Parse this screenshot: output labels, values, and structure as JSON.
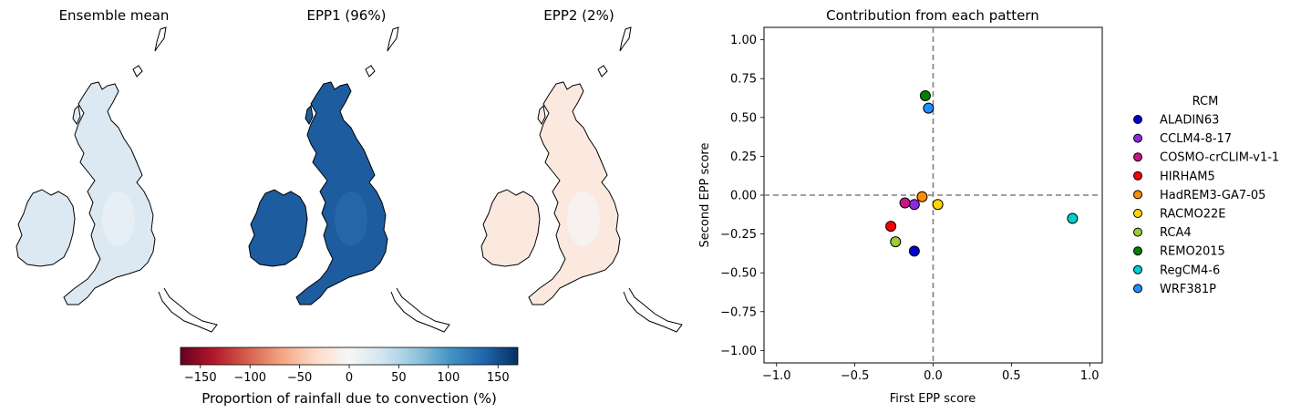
{
  "maps": [
    {
      "title": "Ensemble mean",
      "fill": "#dde9f2",
      "accent": "#eaf1f6"
    },
    {
      "title": "EPP1 (96%)",
      "fill": "#1d5c9e",
      "accent": "#2a6bab"
    },
    {
      "title": "EPP2 (2%)",
      "fill": "#fbe9e0",
      "accent": "#f5f5f5"
    }
  ],
  "colorbar": {
    "label": "Proportion of rainfall due to convection (%)",
    "range": [
      -170,
      170
    ],
    "ticks": [
      -150,
      -100,
      -50,
      0,
      50,
      100,
      150
    ],
    "tick_labels": [
      "−150",
      "−100",
      "−50",
      "0",
      "50",
      "100",
      "150"
    ],
    "colors": [
      "#67001f",
      "#b2182b",
      "#d6604d",
      "#f4a582",
      "#fddbc7",
      "#f7f7f7",
      "#d1e5f0",
      "#92c5de",
      "#4393c3",
      "#2166ac",
      "#053061"
    ]
  },
  "chart_data": {
    "type": "scatter",
    "title": "Contribution from each pattern",
    "xlabel": "First EPP score",
    "ylabel": "Second EPP score",
    "xlim": [
      -1.08,
      1.08
    ],
    "ylim": [
      -1.08,
      1.08
    ],
    "xticks": [
      -1.0,
      -0.5,
      0.0,
      0.5,
      1.0
    ],
    "xtick_labels": [
      "−1.0",
      "−0.5",
      "0.0",
      "0.5",
      "1.0"
    ],
    "yticks": [
      1.0,
      0.75,
      0.5,
      0.25,
      0.0,
      -0.25,
      -0.5,
      -0.75,
      -1.0
    ],
    "ytick_labels": [
      "1.00",
      "0.75",
      "0.50",
      "0.25",
      "0.00",
      "−0.25",
      "−0.50",
      "−0.75",
      "−1.00"
    ],
    "reference_lines": {
      "x": 0,
      "y": 0,
      "style": "dashed"
    },
    "legend": {
      "title": "RCM",
      "placement": "outside-right"
    },
    "points": [
      {
        "name": "ALADIN63",
        "x": -0.12,
        "y": -0.36,
        "color": "#0000cd"
      },
      {
        "name": "CCLM4-8-17",
        "x": -0.12,
        "y": -0.06,
        "color": "#8a2be2"
      },
      {
        "name": "COSMO-crCLIM-v1-1",
        "x": -0.18,
        "y": -0.05,
        "color": "#c71585"
      },
      {
        "name": "HIRHAM5",
        "x": -0.27,
        "y": -0.2,
        "color": "#ff0000"
      },
      {
        "name": "HadREM3-GA7-05",
        "x": -0.07,
        "y": -0.01,
        "color": "#ff8c00"
      },
      {
        "name": "RACMO22E",
        "x": 0.03,
        "y": -0.06,
        "color": "#ffd700"
      },
      {
        "name": "RCA4",
        "x": -0.24,
        "y": -0.3,
        "color": "#9acd32"
      },
      {
        "name": "REMO2015",
        "x": -0.05,
        "y": 0.64,
        "color": "#008000"
      },
      {
        "name": "RegCM4-6",
        "x": 0.89,
        "y": -0.15,
        "color": "#00ced1"
      },
      {
        "name": "WRF381P",
        "x": -0.03,
        "y": 0.56,
        "color": "#1e90ff"
      }
    ]
  }
}
